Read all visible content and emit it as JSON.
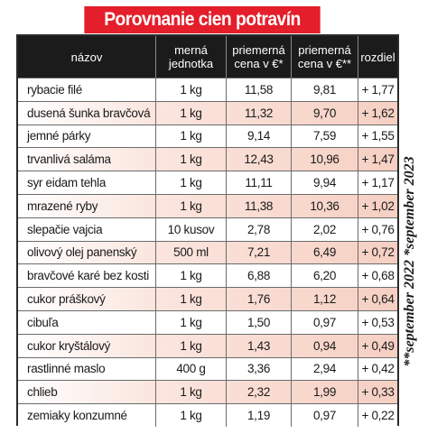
{
  "title": "Porovnanie cien potravín",
  "columns": [
    "názov",
    "merná\njednotka",
    "priemerná\ncena v €*",
    "priemerná\ncena v €**",
    "rozdiel"
  ],
  "rows": [
    [
      "rybacie filé",
      "1 kg",
      "11,58",
      "9,81",
      "+ 1,77"
    ],
    [
      "dusená šunka bravčová",
      "1 kg",
      "11,32",
      "9,70",
      "+ 1,62"
    ],
    [
      "jemné párky",
      "1 kg",
      "9,14",
      "7,59",
      "+ 1,55"
    ],
    [
      "trvanlivá saláma",
      "1 kg",
      "12,43",
      "10,96",
      "+ 1,47"
    ],
    [
      "syr eidam tehla",
      "1 kg",
      "11,11",
      "9,94",
      "+ 1,17"
    ],
    [
      "mrazené ryby",
      "1 kg",
      "11,38",
      "10,36",
      "+ 1,02"
    ],
    [
      "slepačie vajcia",
      "10 kusov",
      "2,78",
      "2,02",
      "+ 0,76"
    ],
    [
      "olivový olej panenský",
      "500 ml",
      "7,21",
      "6,49",
      "+ 0,72"
    ],
    [
      "bravčové karé bez kosti",
      "1 kg",
      "6,88",
      "6,20",
      "+ 0,68"
    ],
    [
      "cukor práškový",
      "1 kg",
      "1,76",
      "1,12",
      "+ 0,64"
    ],
    [
      "cibuľa",
      "1 kg",
      "1,50",
      "0,97",
      "+ 0,53"
    ],
    [
      "cukor kryštálový",
      "1 kg",
      "1,43",
      "0,94",
      "+ 0,49"
    ],
    [
      "rastlinné maslo",
      "400 g",
      "3,36",
      "2,94",
      "+ 0,42"
    ],
    [
      "chlieb",
      "1 kg",
      "2,32",
      "1,99",
      "+ 0,33"
    ],
    [
      "zemiaky konzumné",
      "1 kg",
      "1,19",
      "0,97",
      "+ 0,22"
    ]
  ],
  "side_note": "**september 2022     *september 2023"
}
